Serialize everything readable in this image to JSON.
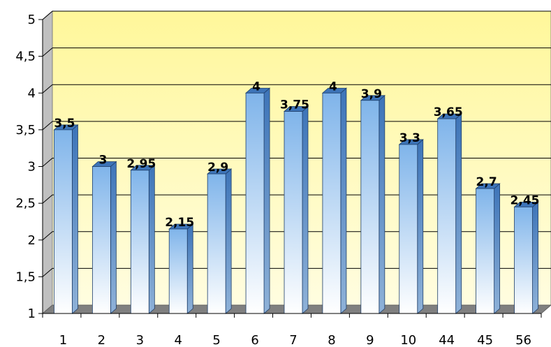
{
  "chart_data": {
    "type": "bar",
    "title": "",
    "xlabel": "",
    "ylabel": "",
    "ylim": [
      1,
      5
    ],
    "yticks": [
      "1",
      "1,5",
      "2",
      "2,5",
      "3",
      "3,5",
      "4",
      "4,5",
      "5"
    ],
    "grid": true,
    "legend": "none",
    "categories": [
      "1",
      "2",
      "3",
      "4",
      "5",
      "6",
      "7",
      "8",
      "9",
      "10",
      "44",
      "45",
      "56"
    ],
    "values": [
      3.5,
      3,
      2.95,
      2.15,
      2.9,
      4,
      3.75,
      4,
      3.9,
      3.3,
      3.65,
      2.7,
      2.45
    ],
    "data_labels": [
      "3,5",
      "3",
      "2,95",
      "2,15",
      "2,9",
      "4",
      "3,75",
      "4",
      "3,9",
      "3,3",
      "3,65",
      "2,7",
      "2,45"
    ],
    "colors": {
      "plot_top": "#fff79a",
      "plot_bottom": "#fffde0",
      "floor": "#808080",
      "wall_side": "#c0c0c0",
      "bar_top": "#7fb4ea",
      "bar_bottom": "#ffffff",
      "bar_dark": "#3d74b8"
    }
  }
}
